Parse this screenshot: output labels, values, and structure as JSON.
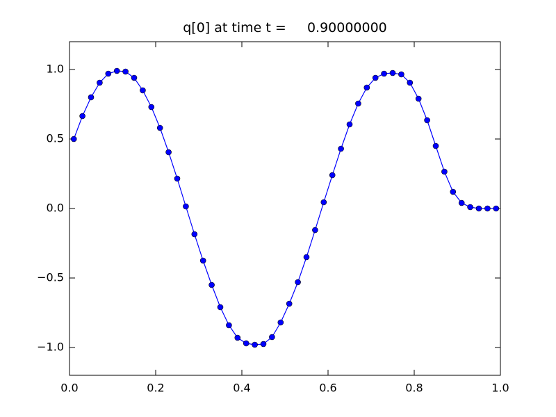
{
  "chart_data": {
    "type": "line",
    "title": "q[0] at time t =     0.90000000",
    "x": [
      0.01,
      0.03,
      0.05,
      0.07,
      0.09,
      0.11,
      0.13,
      0.15,
      0.17,
      0.19,
      0.21,
      0.23,
      0.25,
      0.27,
      0.29,
      0.31,
      0.33,
      0.35,
      0.37,
      0.39,
      0.41,
      0.43,
      0.45,
      0.47,
      0.49,
      0.51,
      0.53,
      0.55,
      0.57,
      0.59,
      0.61,
      0.63,
      0.65,
      0.67,
      0.69,
      0.71,
      0.73,
      0.75,
      0.77,
      0.79,
      0.81,
      0.83,
      0.85,
      0.87,
      0.89,
      0.91,
      0.93,
      0.95,
      0.97,
      0.99
    ],
    "series": [
      {
        "color": "#0000ff",
        "values": [
          0.5,
          0.665,
          0.8,
          0.905,
          0.97,
          0.99,
          0.985,
          0.94,
          0.85,
          0.73,
          0.58,
          0.405,
          0.215,
          0.015,
          -0.185,
          -0.375,
          -0.55,
          -0.71,
          -0.84,
          -0.93,
          -0.97,
          -0.98,
          -0.975,
          -0.925,
          -0.82,
          -0.685,
          -0.53,
          -0.35,
          -0.155,
          0.045,
          0.24,
          0.43,
          0.605,
          0.755,
          0.87,
          0.94,
          0.97,
          0.975,
          0.965,
          0.905,
          0.79,
          0.635,
          0.45,
          0.265,
          0.12,
          0.04,
          0.01,
          0.0,
          0.0,
          0.0
        ]
      }
    ],
    "xlim": [
      0,
      1
    ],
    "ylim": [
      -1.2,
      1.2
    ],
    "xticks": [
      {
        "value": 0,
        "label": "0.0"
      },
      0.2,
      0.4,
      0.6,
      0.8,
      {
        "value": 1,
        "label": "1.0"
      }
    ],
    "yticks": [
      {
        "value": -1,
        "label": "−1.0"
      },
      {
        "value": -0.5,
        "label": "−0.5"
      },
      {
        "value": 0,
        "label": "0.0"
      },
      0.5,
      {
        "value": 1,
        "label": "1.0"
      }
    ],
    "grid": false
  }
}
